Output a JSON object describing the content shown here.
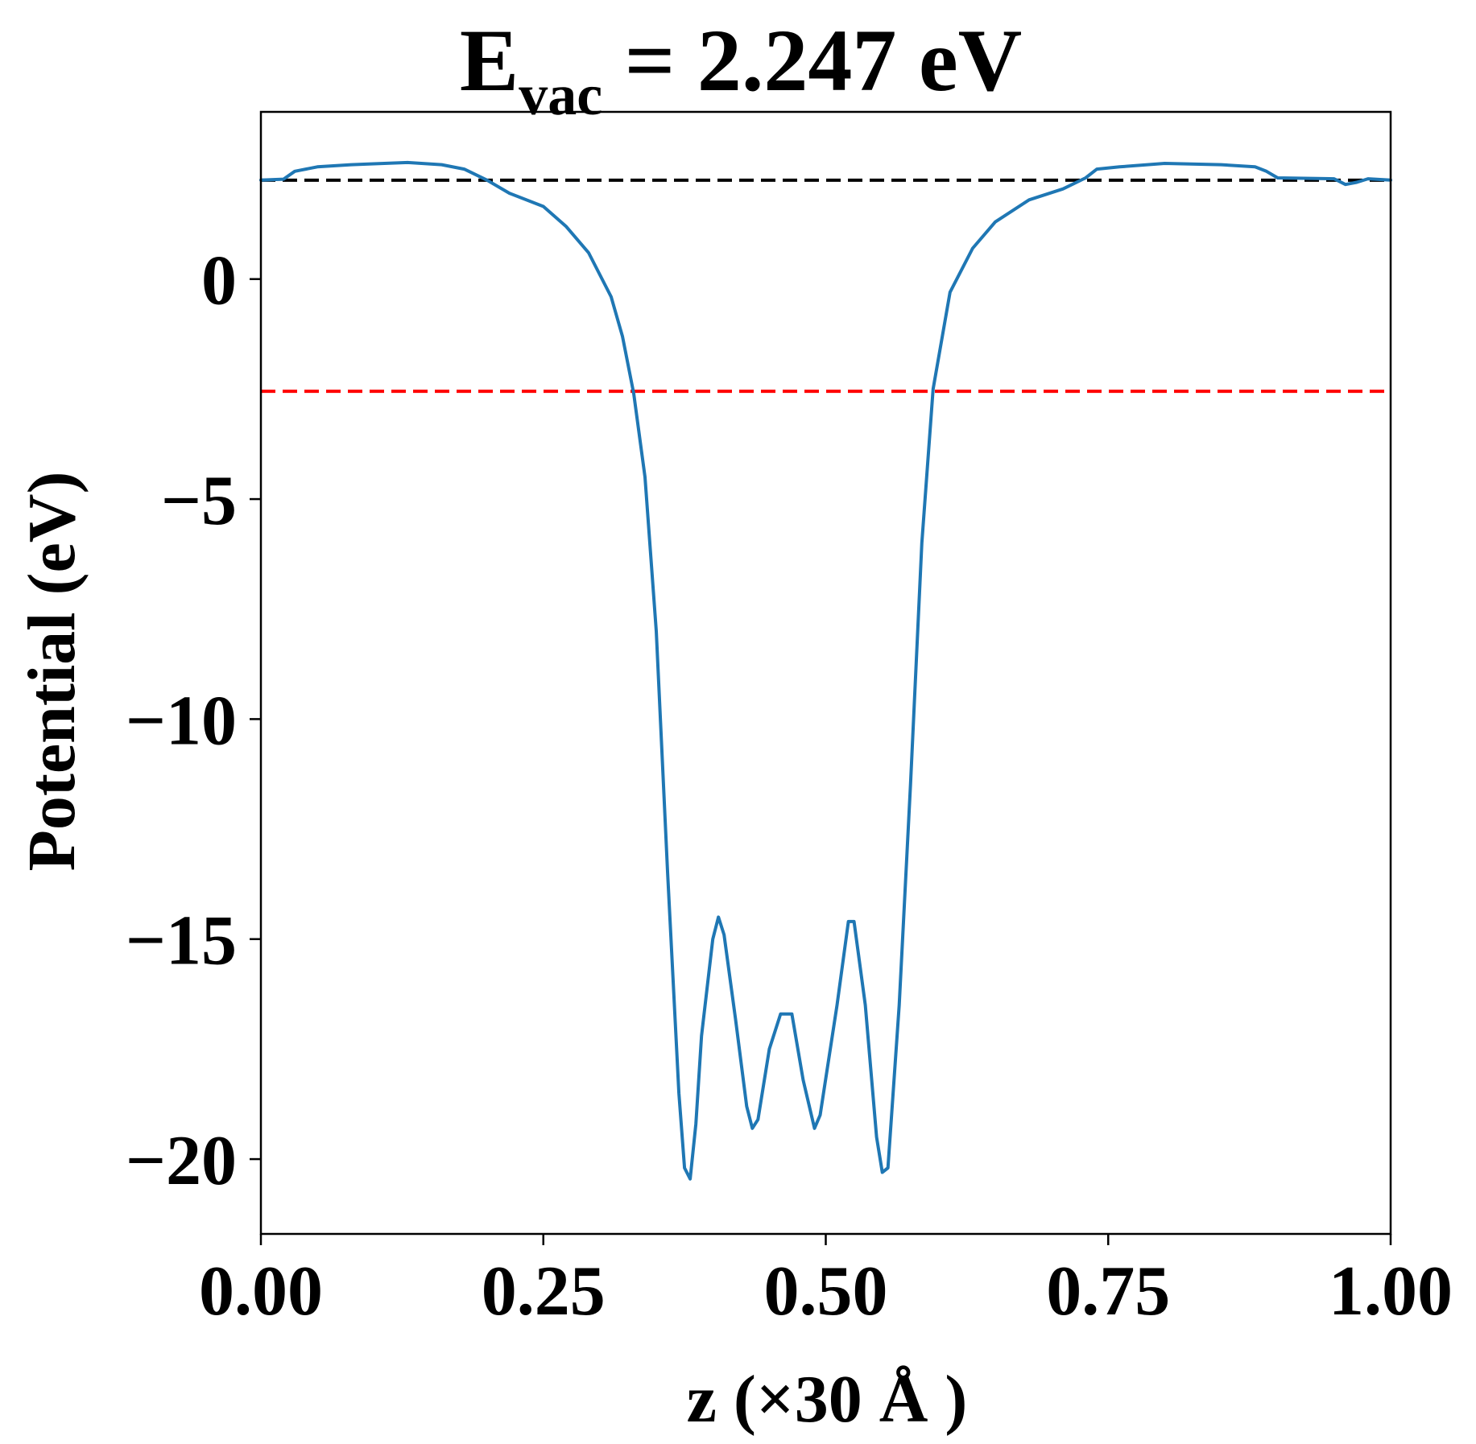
{
  "chart_data": {
    "type": "line",
    "title": {
      "prefix": "E",
      "subscript": "vac",
      "suffix": " = 2.247 eV"
    },
    "xlabel": "z (×30 Å )",
    "ylabel": "Potential (eV)",
    "xlim": [
      0.0,
      1.0
    ],
    "ylim": [
      -21.7,
      3.8
    ],
    "xticks": [
      0.0,
      0.25,
      0.5,
      0.75,
      1.0
    ],
    "xtick_labels": [
      "0.00",
      "0.25",
      "0.50",
      "0.75",
      "1.00"
    ],
    "yticks": [
      0,
      -5,
      -10,
      -15,
      -20
    ],
    "ytick_labels": [
      "0",
      "−5",
      "−10",
      "−15",
      "−20"
    ],
    "grid": false,
    "colors": {
      "series": "#1f77b4",
      "vacuum_line": "#000000",
      "reference_line": "#ff0000"
    },
    "reference_lines": [
      {
        "y": 2.247,
        "style": "dashed",
        "color": "#000000"
      },
      {
        "y": -2.55,
        "style": "dashed",
        "color": "#ff0000"
      }
    ],
    "series": [
      {
        "points": [
          [
            0.0,
            2.25
          ],
          [
            0.02,
            2.27
          ],
          [
            0.03,
            2.45
          ],
          [
            0.05,
            2.55
          ],
          [
            0.08,
            2.6
          ],
          [
            0.1,
            2.62
          ],
          [
            0.13,
            2.65
          ],
          [
            0.16,
            2.6
          ],
          [
            0.18,
            2.5
          ],
          [
            0.2,
            2.25
          ],
          [
            0.22,
            1.95
          ],
          [
            0.25,
            1.65
          ],
          [
            0.27,
            1.2
          ],
          [
            0.29,
            0.6
          ],
          [
            0.31,
            -0.4
          ],
          [
            0.32,
            -1.3
          ],
          [
            0.33,
            -2.6
          ],
          [
            0.34,
            -4.5
          ],
          [
            0.35,
            -8.0
          ],
          [
            0.36,
            -13.5
          ],
          [
            0.37,
            -18.5
          ],
          [
            0.375,
            -20.2
          ],
          [
            0.38,
            -20.45
          ],
          [
            0.385,
            -19.2
          ],
          [
            0.39,
            -17.2
          ],
          [
            0.4,
            -15.0
          ],
          [
            0.405,
            -14.5
          ],
          [
            0.41,
            -14.9
          ],
          [
            0.42,
            -16.8
          ],
          [
            0.43,
            -18.8
          ],
          [
            0.435,
            -19.3
          ],
          [
            0.44,
            -19.1
          ],
          [
            0.45,
            -17.5
          ],
          [
            0.46,
            -16.7
          ],
          [
            0.47,
            -16.7
          ],
          [
            0.48,
            -18.2
          ],
          [
            0.49,
            -19.3
          ],
          [
            0.495,
            -19.0
          ],
          [
            0.51,
            -16.5
          ],
          [
            0.52,
            -14.6
          ],
          [
            0.525,
            -14.6
          ],
          [
            0.535,
            -16.5
          ],
          [
            0.545,
            -19.5
          ],
          [
            0.55,
            -20.3
          ],
          [
            0.555,
            -20.2
          ],
          [
            0.565,
            -16.5
          ],
          [
            0.575,
            -11.5
          ],
          [
            0.585,
            -6.0
          ],
          [
            0.595,
            -2.5
          ],
          [
            0.61,
            -0.3
          ],
          [
            0.63,
            0.7
          ],
          [
            0.65,
            1.3
          ],
          [
            0.68,
            1.8
          ],
          [
            0.71,
            2.05
          ],
          [
            0.73,
            2.3
          ],
          [
            0.74,
            2.5
          ],
          [
            0.76,
            2.55
          ],
          [
            0.8,
            2.63
          ],
          [
            0.85,
            2.6
          ],
          [
            0.88,
            2.55
          ],
          [
            0.89,
            2.45
          ],
          [
            0.9,
            2.3
          ],
          [
            0.95,
            2.28
          ],
          [
            0.96,
            2.15
          ],
          [
            0.97,
            2.2
          ],
          [
            0.98,
            2.28
          ],
          [
            1.0,
            2.25
          ]
        ]
      }
    ]
  }
}
